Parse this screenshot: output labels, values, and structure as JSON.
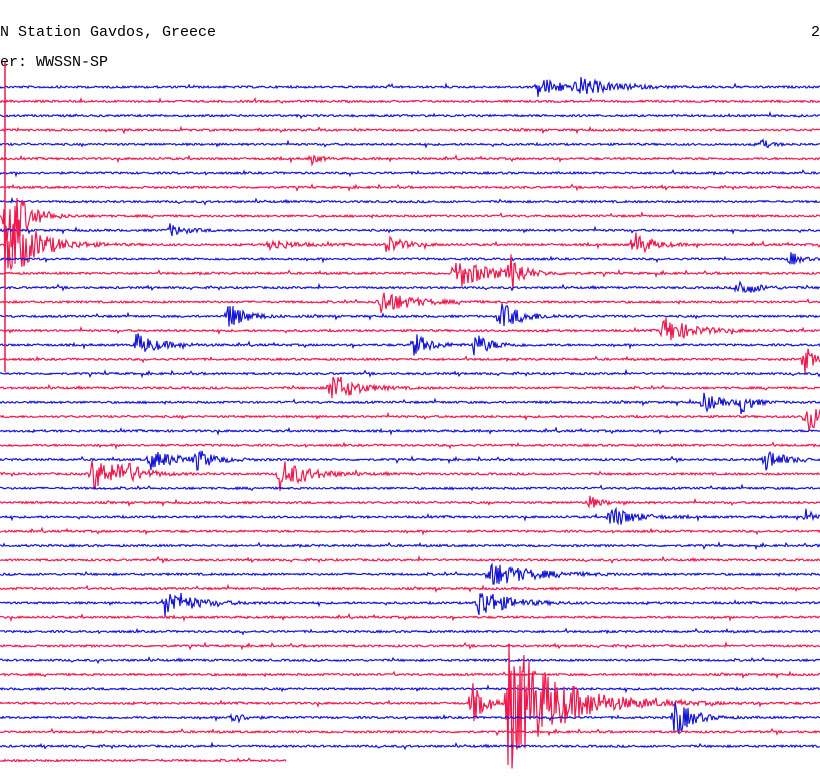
{
  "header": {
    "station": "N Station Gavdos, Greece",
    "filter": "er: WWSSN-SP",
    "corner": "2"
  }
}
